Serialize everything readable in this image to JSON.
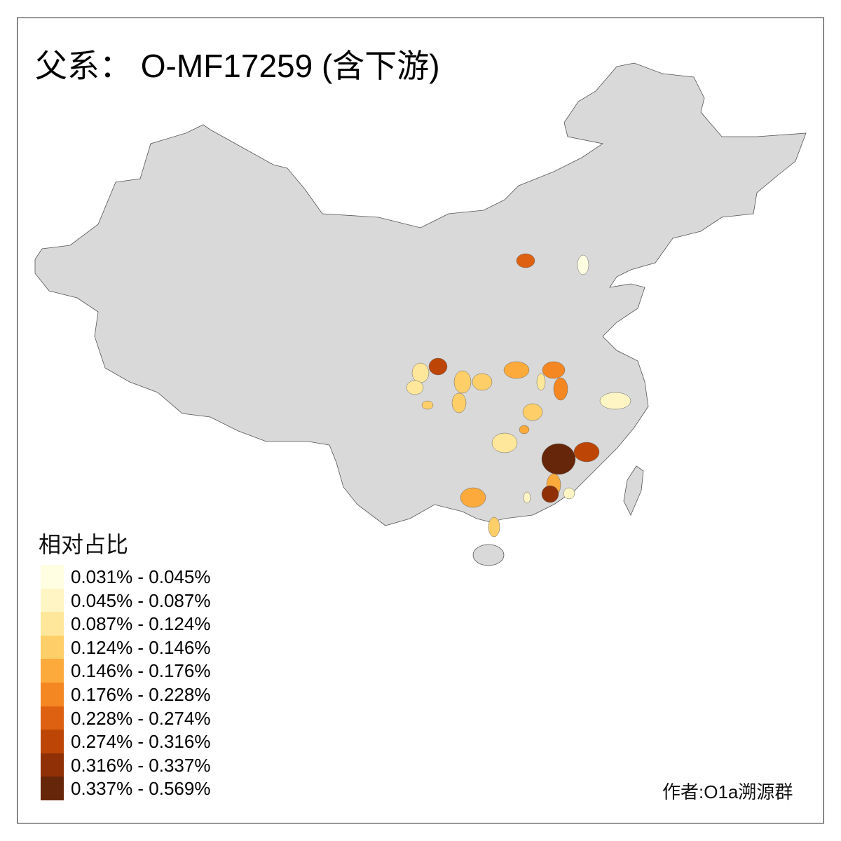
{
  "title": "父系： O-MF17259 (含下游)",
  "legend": {
    "title": "相对占比",
    "classes": [
      {
        "label": "0.031% - 0.045%",
        "color": "#fffde2"
      },
      {
        "label": "0.045% - 0.087%",
        "color": "#fff5c4"
      },
      {
        "label": "0.087% - 0.124%",
        "color": "#fee69b"
      },
      {
        "label": "0.124% - 0.146%",
        "color": "#fecf69"
      },
      {
        "label": "0.146% - 0.176%",
        "color": "#fdaa3c"
      },
      {
        "label": "0.176% - 0.228%",
        "color": "#f48722"
      },
      {
        "label": "0.228% - 0.274%",
        "color": "#de6111"
      },
      {
        "label": "0.274% - 0.316%",
        "color": "#bd4606"
      },
      {
        "label": "0.316% - 0.337%",
        "color": "#8f3006"
      },
      {
        "label": "0.337% - 0.569%",
        "color": "#662609"
      }
    ]
  },
  "author": "作者:O1a溯源群",
  "colors": {
    "base": "#d9d9d9",
    "outline": "#555555"
  }
}
